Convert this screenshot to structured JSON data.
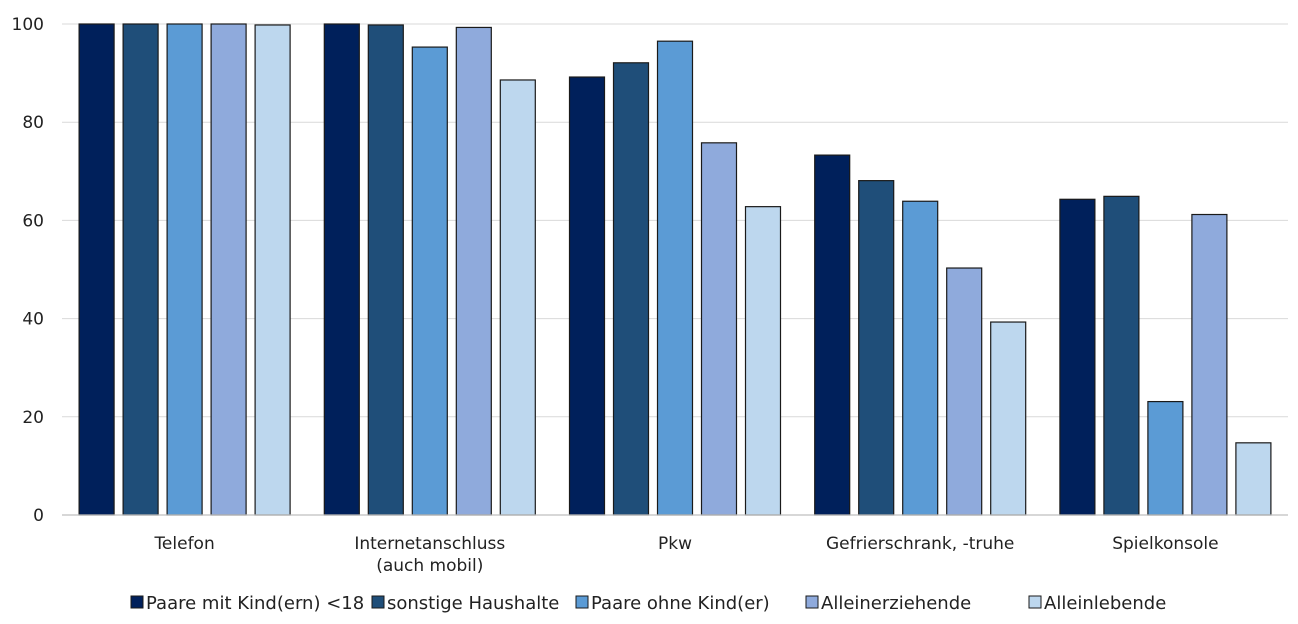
{
  "chart_data": {
    "type": "bar",
    "title": "",
    "xlabel": "",
    "ylabel": "",
    "ylim": [
      0,
      100
    ],
    "yticks": [
      0,
      20,
      40,
      60,
      80,
      100
    ],
    "grid": true,
    "legend_position": "bottom",
    "categories": [
      [
        "Telefon"
      ],
      [
        "Internetanschluss",
        "(auch mobil)"
      ],
      [
        "Pkw"
      ],
      [
        "Gefrierschrank, -truhe"
      ],
      [
        "Spielkonsole"
      ]
    ],
    "series": [
      {
        "name": "Paare mit Kind(ern) <18",
        "color": "#00205b",
        "values": [
          100,
          100,
          89.2,
          73.3,
          64.3
        ]
      },
      {
        "name": "sonstige Haushalte",
        "color": "#1f4e79",
        "values": [
          100,
          99.8,
          92.1,
          68.1,
          64.9
        ]
      },
      {
        "name": "Paare ohne Kind(er)",
        "color": "#5b9bd5",
        "values": [
          100,
          95.3,
          96.5,
          63.9,
          23.1
        ]
      },
      {
        "name": "Alleinerziehende",
        "color": "#8faadc",
        "values": [
          100,
          99.3,
          75.8,
          50.3,
          61.2
        ]
      },
      {
        "name": "Alleinlebende",
        "color": "#bdd7ee",
        "values": [
          99.8,
          88.6,
          62.8,
          39.3,
          14.7
        ]
      }
    ]
  }
}
